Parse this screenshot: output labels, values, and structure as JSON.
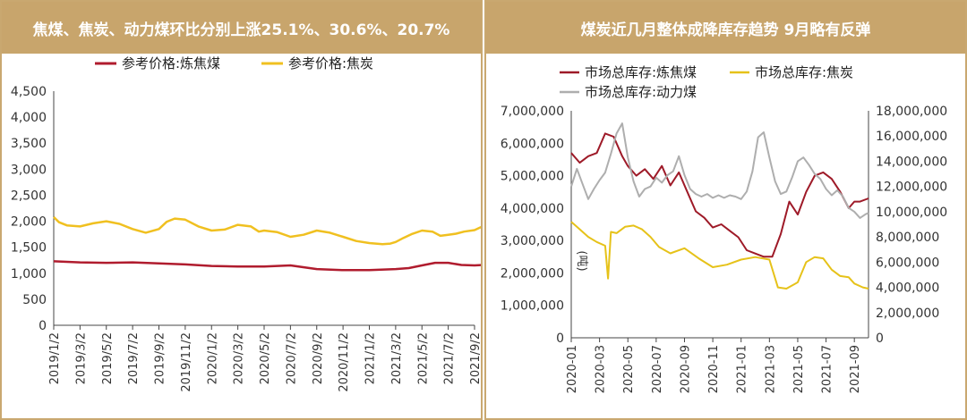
{
  "chart_data": [
    {
      "type": "line",
      "title": "焦煤、焦炭、动力煤环比分别上涨25.1%、30.6%、20.7%",
      "xlabel": "",
      "ylabel": "",
      "ylim": [
        0,
        4500
      ],
      "y_ticks": [
        "4,500",
        "4,000",
        "3,500",
        "3,000",
        "2,500",
        "2,000",
        "1,500",
        "1,000",
        "500",
        "0"
      ],
      "x_ticks": [
        "2019/1/2",
        "2019/3/2",
        "2019/5/2",
        "2019/7/2",
        "2019/9/2",
        "2019/11/2",
        "2020/1/2",
        "2020/3/2",
        "2020/5/2",
        "2020/7/2",
        "2020/9/2",
        "2020/11/2",
        "2021/1/2",
        "2021/3/2",
        "2021/5/2",
        "2021/7/2",
        "2021/9/2"
      ],
      "legend_position": "top",
      "grid": false,
      "series": [
        {
          "name": "参考价格:炼焦煤",
          "color": "#b01c2e",
          "x": [
            0,
            1,
            2,
            3,
            4,
            5,
            6,
            7,
            8,
            9,
            10,
            11,
            12,
            13,
            13.5,
            14,
            14.5,
            15,
            15.5,
            16,
            16.3,
            16.6
          ],
          "values": [
            1230,
            1210,
            1200,
            1210,
            1190,
            1170,
            1140,
            1130,
            1130,
            1150,
            1080,
            1060,
            1060,
            1080,
            1100,
            1150,
            1200,
            1200,
            1160,
            1150,
            1160,
            1250
          ]
        },
        {
          "name": "参考价格:焦炭",
          "color": "#f0c020",
          "x": [
            0,
            0.2,
            0.5,
            1,
            1.5,
            2,
            2.5,
            3,
            3.5,
            4,
            4.3,
            4.6,
            5,
            5.5,
            6,
            6.5,
            7,
            7.5,
            7.8,
            8,
            8.5,
            9,
            9.5,
            10,
            10.5,
            11,
            11.5,
            12,
            12.5,
            12.8,
            13,
            13.3,
            13.6,
            14,
            14.4,
            14.7,
            15,
            15.3,
            15.6,
            16,
            16.3,
            16.6
          ],
          "values": [
            2080,
            1980,
            1920,
            1900,
            1960,
            2000,
            1950,
            1850,
            1780,
            1850,
            1990,
            2050,
            2030,
            1900,
            1820,
            1840,
            1930,
            1900,
            1800,
            1820,
            1790,
            1700,
            1740,
            1820,
            1780,
            1700,
            1620,
            1580,
            1560,
            1570,
            1600,
            1680,
            1750,
            1820,
            1800,
            1720,
            1740,
            1760,
            1800,
            1830,
            1900,
            1920
          ]
        }
      ]
    },
    {
      "type": "line",
      "title": "煤炭近几月整体成降库存趋势  9月略有反弹",
      "xlabel": "",
      "ylabel": "(吨)",
      "ylim": [
        0,
        7000000
      ],
      "y2lim": [
        0,
        18000000
      ],
      "y_ticks": [
        "7,000,000",
        "6,000,000",
        "5,000,000",
        "4,000,000",
        "3,000,000",
        "2,000,000",
        "1,000,000",
        "0"
      ],
      "y2_ticks": [
        "18,000,000",
        "16,000,000",
        "14,000,000",
        "12,000,000",
        "10,000,000",
        "8,000,000",
        "6,000,000",
        "4,000,000",
        "2,000,000",
        "0"
      ],
      "x_ticks": [
        "2020-01",
        "2020-03",
        "2020-05",
        "2020-07",
        "2020-09",
        "2020-11",
        "2021-01",
        "2021-03",
        "2021-05",
        "2021-07",
        "2021-09"
      ],
      "legend_position": "top",
      "grid": false,
      "series": [
        {
          "name": "市场总库存:炼焦煤",
          "color": "#9e1a28",
          "axis": "left",
          "x": [
            0,
            0.3,
            0.6,
            0.9,
            1.2,
            1.5,
            1.8,
            2,
            2.3,
            2.6,
            2.9,
            3.2,
            3.5,
            3.8,
            4.1,
            4.4,
            4.7,
            5,
            5.3,
            5.6,
            5.9,
            6.2,
            6.5,
            6.8,
            7.1,
            7.4,
            7.7,
            8,
            8.3,
            8.6,
            8.9,
            9.2,
            9.5,
            9.8,
            10,
            10.2,
            10.5
          ],
          "values": [
            5700000,
            5400000,
            5600000,
            5700000,
            6300000,
            6200000,
            5600000,
            5300000,
            5000000,
            5200000,
            4900000,
            5300000,
            4700000,
            5100000,
            4500000,
            3900000,
            3700000,
            3400000,
            3500000,
            3300000,
            3100000,
            2700000,
            2600000,
            2500000,
            2500000,
            3200000,
            4200000,
            3800000,
            4500000,
            5000000,
            5100000,
            4900000,
            4500000,
            4000000,
            4200000,
            4200000,
            4300000
          ]
        },
        {
          "name": "市场总库存:焦炭",
          "color": "#e6c219",
          "axis": "right",
          "x": [
            0,
            0.3,
            0.6,
            0.9,
            1.2,
            1.3,
            1.4,
            1.6,
            1.9,
            2.2,
            2.5,
            2.8,
            3.1,
            3.5,
            4,
            4.5,
            5,
            5.5,
            6,
            6.5,
            7,
            7.3,
            7.6,
            8,
            8.3,
            8.6,
            8.9,
            9.2,
            9.5,
            9.8,
            10,
            10.3,
            10.5
          ],
          "values": [
            9200000,
            8600000,
            8000000,
            7600000,
            7300000,
            4700000,
            8400000,
            8300000,
            8800000,
            8900000,
            8600000,
            8000000,
            7200000,
            6700000,
            7100000,
            6300000,
            5600000,
            5800000,
            6200000,
            6400000,
            6200000,
            4000000,
            3900000,
            4400000,
            6000000,
            6400000,
            6300000,
            5400000,
            4900000,
            4800000,
            4300000,
            4000000,
            3900000
          ]
        },
        {
          "name": "市场总库存:动力煤",
          "color": "#aeaeae",
          "axis": "right",
          "x": [
            0,
            0.2,
            0.4,
            0.6,
            0.8,
            1,
            1.2,
            1.4,
            1.6,
            1.8,
            2,
            2.2,
            2.4,
            2.6,
            2.8,
            3,
            3.2,
            3.4,
            3.6,
            3.8,
            4,
            4.2,
            4.4,
            4.6,
            4.8,
            5,
            5.2,
            5.4,
            5.6,
            5.8,
            6,
            6.2,
            6.4,
            6.6,
            6.8,
            7,
            7.2,
            7.4,
            7.6,
            7.8,
            8,
            8.2,
            8.4,
            8.6,
            8.8,
            9,
            9.2,
            9.4,
            9.6,
            9.8,
            10,
            10.2,
            10.4,
            10.5
          ],
          "values": [
            12000000,
            13400000,
            12200000,
            11000000,
            11800000,
            12500000,
            13100000,
            14600000,
            16200000,
            17000000,
            14300000,
            12400000,
            11200000,
            11800000,
            12000000,
            12700000,
            12300000,
            12900000,
            13200000,
            14400000,
            12900000,
            11800000,
            11400000,
            11200000,
            11400000,
            11100000,
            11300000,
            11100000,
            11300000,
            11200000,
            11000000,
            11600000,
            13200000,
            15900000,
            16300000,
            14300000,
            12400000,
            11400000,
            11600000,
            12700000,
            14000000,
            14300000,
            13700000,
            13000000,
            12600000,
            11800000,
            11300000,
            11700000,
            11200000,
            10300000,
            10000000,
            9500000,
            9800000,
            9900000
          ]
        }
      ]
    }
  ]
}
